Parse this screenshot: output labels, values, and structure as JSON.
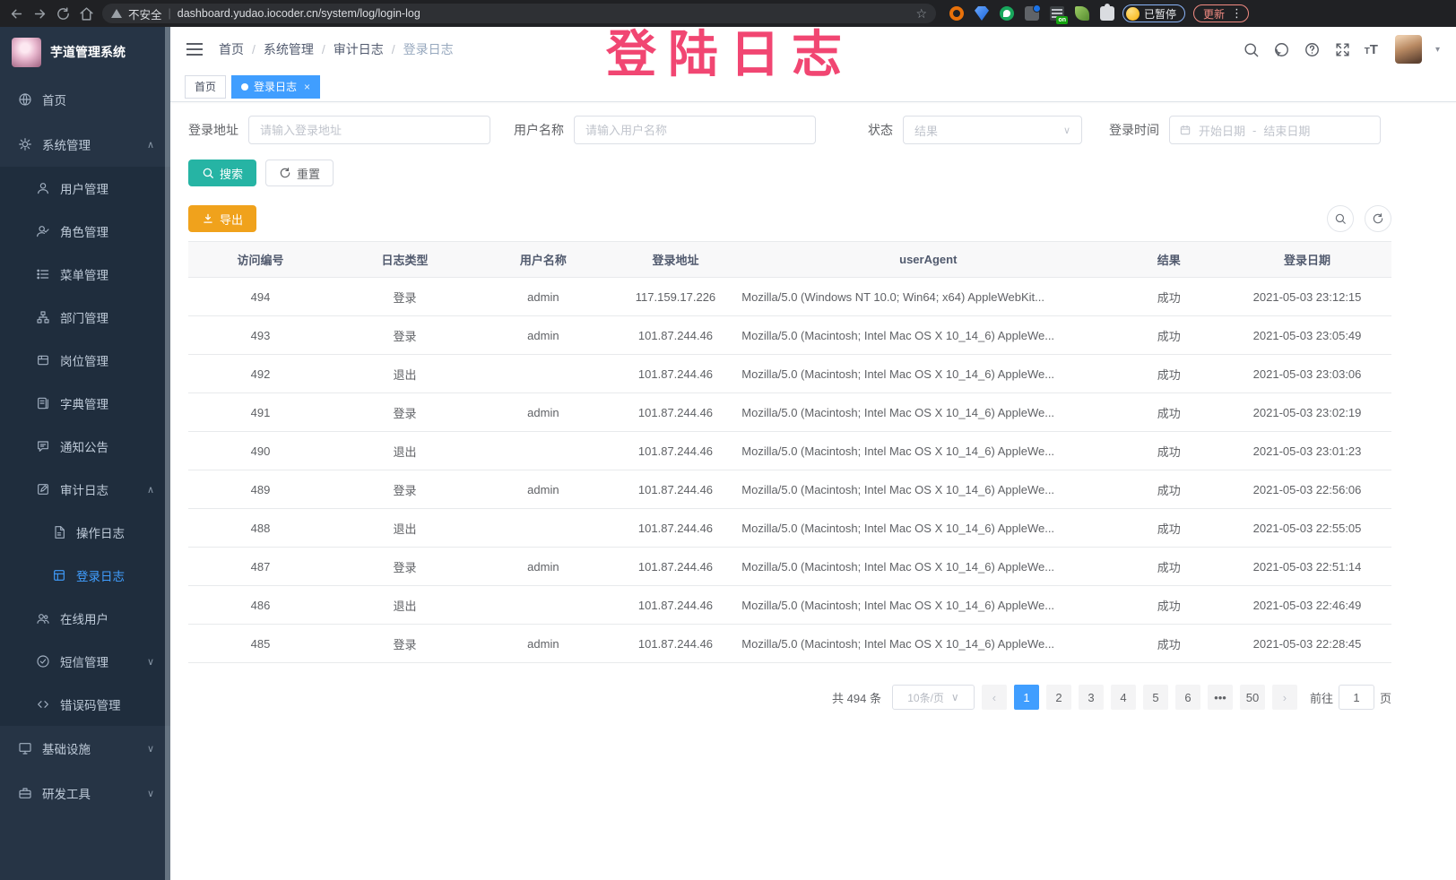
{
  "browser": {
    "security_label": "不安全",
    "url": "dashboard.yudao.iocoder.cn/system/log/login-log",
    "extensions": [
      "orange-extension",
      "blue-gem-extension",
      "green-heart-extension",
      "grid-extension",
      "list-on-extension",
      "leaf-extension",
      "puzzle-extension"
    ],
    "on_badge": "on",
    "paused_label": "已暂停",
    "update_label": "更新"
  },
  "header": {
    "breadcrumbs": [
      "首页",
      "系统管理",
      "审计日志",
      "登录日志"
    ],
    "overlay_title": "登陆日志"
  },
  "sidebar": {
    "app_title": "芋道管理系统",
    "items": [
      {
        "label": "首页",
        "icon": "dashboard-icon",
        "depth": 0
      },
      {
        "label": "系统管理",
        "icon": "gear-icon",
        "depth": 0,
        "expand": "up"
      },
      {
        "label": "用户管理",
        "icon": "user-icon",
        "depth": 1
      },
      {
        "label": "角色管理",
        "icon": "role-icon",
        "depth": 1
      },
      {
        "label": "菜单管理",
        "icon": "menu-list-icon",
        "depth": 1
      },
      {
        "label": "部门管理",
        "icon": "org-tree-icon",
        "depth": 1
      },
      {
        "label": "岗位管理",
        "icon": "post-badge-icon",
        "depth": 1
      },
      {
        "label": "字典管理",
        "icon": "dict-book-icon",
        "depth": 1
      },
      {
        "label": "通知公告",
        "icon": "notice-message-icon",
        "depth": 1
      },
      {
        "label": "审计日志",
        "icon": "audit-edit-icon",
        "depth": 1,
        "expand": "up"
      },
      {
        "label": "操作日志",
        "icon": "operate-doc-icon",
        "depth": 2
      },
      {
        "label": "登录日志",
        "icon": "login-log-icon",
        "depth": 2,
        "active": true
      },
      {
        "label": "在线用户",
        "icon": "online-users-icon",
        "depth": 1
      },
      {
        "label": "短信管理",
        "icon": "sms-check-icon",
        "depth": 1,
        "expand": "down"
      },
      {
        "label": "错误码管理",
        "icon": "error-code-icon",
        "depth": 1
      },
      {
        "label": "基础设施",
        "icon": "infra-monitor-icon",
        "depth": 0,
        "expand": "down"
      },
      {
        "label": "研发工具",
        "icon": "dev-tool-icon",
        "depth": 0,
        "expand": "down"
      }
    ]
  },
  "tabs": [
    {
      "label": "首页",
      "active": false,
      "closable": false
    },
    {
      "label": "登录日志",
      "active": true,
      "closable": true
    }
  ],
  "filters": {
    "address_label": "登录地址",
    "address_placeholder": "请输入登录地址",
    "username_label": "用户名称",
    "username_placeholder": "请输入用户名称",
    "status_label": "状态",
    "status_placeholder": "结果",
    "time_label": "登录时间",
    "start_placeholder": "开始日期",
    "range_separator": "-",
    "end_placeholder": "结束日期",
    "search_label": "搜索",
    "reset_label": "重置",
    "export_label": "导出"
  },
  "table": {
    "columns": [
      "访问编号",
      "日志类型",
      "用户名称",
      "登录地址",
      "userAgent",
      "结果",
      "登录日期"
    ],
    "rows": [
      [
        "494",
        "登录",
        "admin",
        "117.159.17.226",
        "Mozilla/5.0 (Windows NT 10.0; Win64; x64) AppleWebKit...",
        "成功",
        "2021-05-03 23:12:15"
      ],
      [
        "493",
        "登录",
        "admin",
        "101.87.244.46",
        "Mozilla/5.0 (Macintosh; Intel Mac OS X 10_14_6) AppleWe...",
        "成功",
        "2021-05-03 23:05:49"
      ],
      [
        "492",
        "退出",
        "",
        "101.87.244.46",
        "Mozilla/5.0 (Macintosh; Intel Mac OS X 10_14_6) AppleWe...",
        "成功",
        "2021-05-03 23:03:06"
      ],
      [
        "491",
        "登录",
        "admin",
        "101.87.244.46",
        "Mozilla/5.0 (Macintosh; Intel Mac OS X 10_14_6) AppleWe...",
        "成功",
        "2021-05-03 23:02:19"
      ],
      [
        "490",
        "退出",
        "",
        "101.87.244.46",
        "Mozilla/5.0 (Macintosh; Intel Mac OS X 10_14_6) AppleWe...",
        "成功",
        "2021-05-03 23:01:23"
      ],
      [
        "489",
        "登录",
        "admin",
        "101.87.244.46",
        "Mozilla/5.0 (Macintosh; Intel Mac OS X 10_14_6) AppleWe...",
        "成功",
        "2021-05-03 22:56:06"
      ],
      [
        "488",
        "退出",
        "",
        "101.87.244.46",
        "Mozilla/5.0 (Macintosh; Intel Mac OS X 10_14_6) AppleWe...",
        "成功",
        "2021-05-03 22:55:05"
      ],
      [
        "487",
        "登录",
        "admin",
        "101.87.244.46",
        "Mozilla/5.0 (Macintosh; Intel Mac OS X 10_14_6) AppleWe...",
        "成功",
        "2021-05-03 22:51:14"
      ],
      [
        "486",
        "退出",
        "",
        "101.87.244.46",
        "Mozilla/5.0 (Macintosh; Intel Mac OS X 10_14_6) AppleWe...",
        "成功",
        "2021-05-03 22:46:49"
      ],
      [
        "485",
        "登录",
        "admin",
        "101.87.244.46",
        "Mozilla/5.0 (Macintosh; Intel Mac OS X 10_14_6) AppleWe...",
        "成功",
        "2021-05-03 22:28:45"
      ]
    ]
  },
  "pagination": {
    "total_label": "共 494 条",
    "page_size_label": "10条/页",
    "pages": [
      "1",
      "2",
      "3",
      "4",
      "5",
      "6",
      "•••",
      "50"
    ],
    "active_page": "1",
    "prev_symbol": "‹",
    "next_symbol": "›",
    "goto_label": "前往",
    "goto_value": "1",
    "page_unit_label": "页"
  },
  "colors": {
    "primary": "#409eff",
    "search_button": "#26b4a4",
    "export_button": "#f0a21c",
    "overlay_pink": "#f14672",
    "sidebar_bg": "#263445",
    "submenu_bg": "#1f2d3d",
    "paused_blue": "#8ab4f8",
    "update_red": "#f28b82"
  }
}
